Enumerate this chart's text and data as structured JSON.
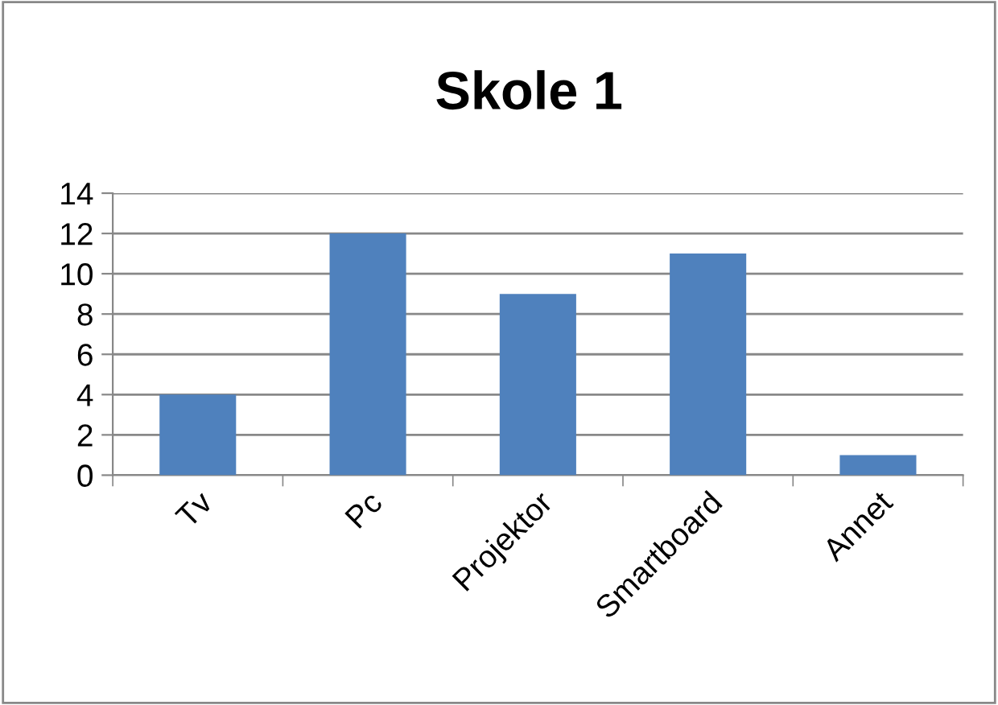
{
  "chart_data": {
    "type": "bar",
    "title": "Skole 1",
    "categories": [
      "Tv",
      "Pc",
      "Projektor",
      "Smartboard",
      "Annet"
    ],
    "values": [
      4,
      12,
      9,
      11,
      1
    ],
    "color": "#4f81bd",
    "ylim": [
      0,
      14
    ],
    "yticks": [
      0,
      2,
      4,
      6,
      8,
      10,
      12,
      14
    ],
    "grid": "y"
  }
}
